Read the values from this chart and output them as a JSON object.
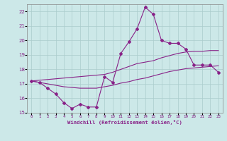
{
  "xlabel": "Windchill (Refroidissement éolien,°C)",
  "x_values": [
    0,
    1,
    2,
    3,
    4,
    5,
    6,
    7,
    8,
    9,
    10,
    11,
    12,
    13,
    14,
    15,
    16,
    17,
    18,
    19,
    20,
    21,
    22,
    23
  ],
  "main_line": [
    17.2,
    17.1,
    16.7,
    16.3,
    15.7,
    15.3,
    15.6,
    15.4,
    15.4,
    17.5,
    17.1,
    19.1,
    19.9,
    20.8,
    22.3,
    21.8,
    20.0,
    19.8,
    19.8,
    19.4,
    18.3,
    18.3,
    18.3,
    17.8
  ],
  "line2": [
    17.2,
    17.25,
    17.3,
    17.35,
    17.4,
    17.45,
    17.5,
    17.55,
    17.6,
    17.65,
    17.8,
    18.0,
    18.2,
    18.4,
    18.5,
    18.6,
    18.8,
    18.95,
    19.1,
    19.2,
    19.25,
    19.25,
    19.3,
    19.3
  ],
  "line3": [
    17.2,
    17.1,
    17.0,
    16.9,
    16.8,
    16.75,
    16.7,
    16.7,
    16.7,
    16.8,
    16.9,
    17.05,
    17.15,
    17.3,
    17.4,
    17.55,
    17.7,
    17.85,
    17.95,
    18.05,
    18.1,
    18.15,
    18.2,
    18.25
  ],
  "ylim": [
    15,
    22.5
  ],
  "yticks": [
    15,
    16,
    17,
    18,
    19,
    20,
    21,
    22
  ],
  "xlim": [
    -0.5,
    23.5
  ],
  "line_color": "#882288",
  "bg_color": "#cce8e8",
  "grid_color": "#aacccc"
}
